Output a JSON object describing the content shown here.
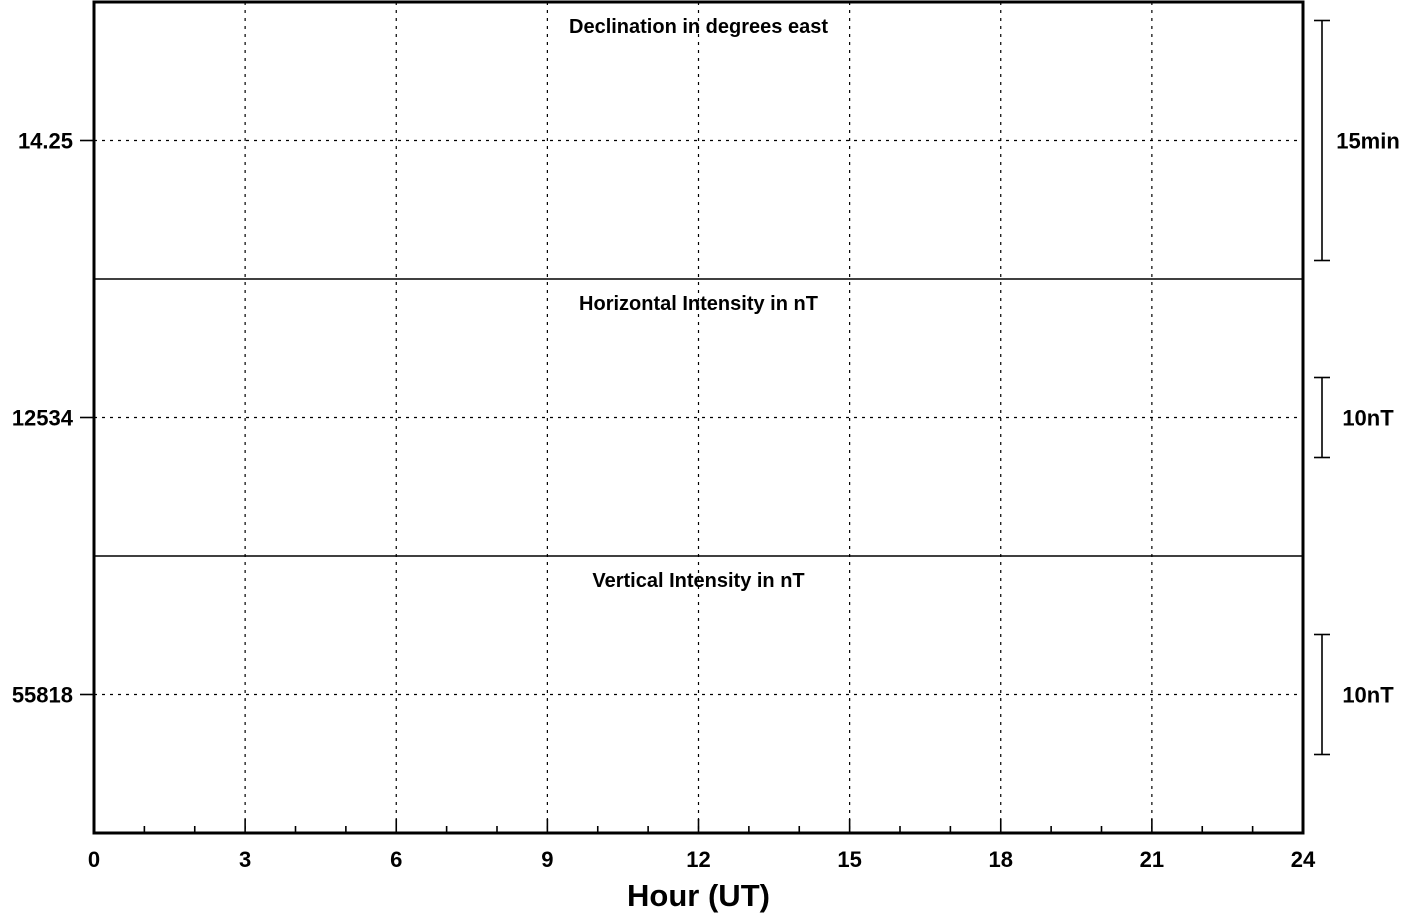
{
  "chart_data": {
    "type": "line",
    "x_axis": {
      "label": "Hour (UT)",
      "range": [
        0,
        24
      ],
      "major_ticks": [
        0,
        3,
        6,
        9,
        12,
        15,
        18,
        21,
        24
      ],
      "minor_tick_step": 1,
      "tick_labels": [
        "0",
        "3",
        "6",
        "9",
        "12",
        "15",
        "18",
        "21",
        "24"
      ]
    },
    "grid": true,
    "panels": [
      {
        "title": "Declination in degrees east",
        "baseline_label": "14.25",
        "baseline_value": 14.25,
        "scale_label": "15min",
        "series": []
      },
      {
        "title": "Horizontal Intensity in nT",
        "baseline_label": "12534",
        "baseline_value": 12534,
        "scale_label": "10nT",
        "series": []
      },
      {
        "title": "Vertical Intensity in nT",
        "baseline_label": "55818",
        "baseline_value": 55818,
        "scale_label": "10nT",
        "series": []
      }
    ]
  }
}
